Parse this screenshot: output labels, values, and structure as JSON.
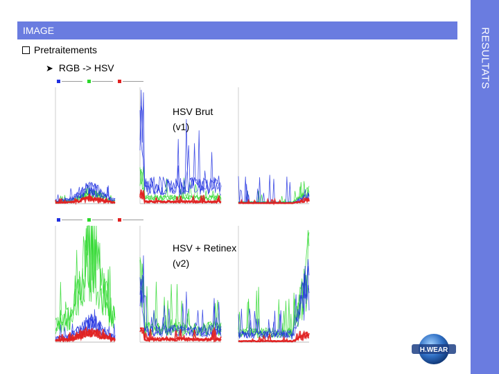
{
  "header": {
    "title": "IMAGE"
  },
  "side": {
    "title": "RESULTATS"
  },
  "bullets": {
    "level1": "Pretraitements",
    "level2": "RGB -> HSV"
  },
  "captions": {
    "chart1_line1": "HSV Brut",
    "chart1_line2": "(v1)",
    "chart2_line1": "HSV + Retinex",
    "chart2_line2": "(v2)"
  },
  "logo": {
    "text": "H.WEAR"
  },
  "colors": {
    "accent": "#6a7ce0",
    "series_blue": "#1f2fe0",
    "series_green": "#2bd82b",
    "series_red": "#e02020"
  },
  "chart_data": [
    {
      "type": "line",
      "title": "",
      "legend": [
        "blue series",
        "green series",
        "red series"
      ],
      "panels": 3,
      "series": [
        {
          "color": "blue",
          "peaks": [
            0.15,
            0.95,
            0.4,
            0.1
          ]
        },
        {
          "color": "green",
          "peaks": [
            0.1,
            0.3,
            0.2,
            0.15
          ]
        },
        {
          "color": "red",
          "peaks": [
            0.05,
            0.1,
            0.05,
            0.05
          ]
        }
      ]
    },
    {
      "type": "line",
      "title": "",
      "legend": [
        "blue series",
        "green series",
        "red series"
      ],
      "panels": 3,
      "series": [
        {
          "color": "blue",
          "peaks": [
            0.2,
            0.6,
            0.4,
            0.8
          ]
        },
        {
          "color": "green",
          "peaks": [
            0.9,
            0.7,
            0.6,
            0.95
          ]
        },
        {
          "color": "red",
          "peaks": [
            0.1,
            0.15,
            0.1,
            0.1
          ]
        }
      ]
    }
  ]
}
